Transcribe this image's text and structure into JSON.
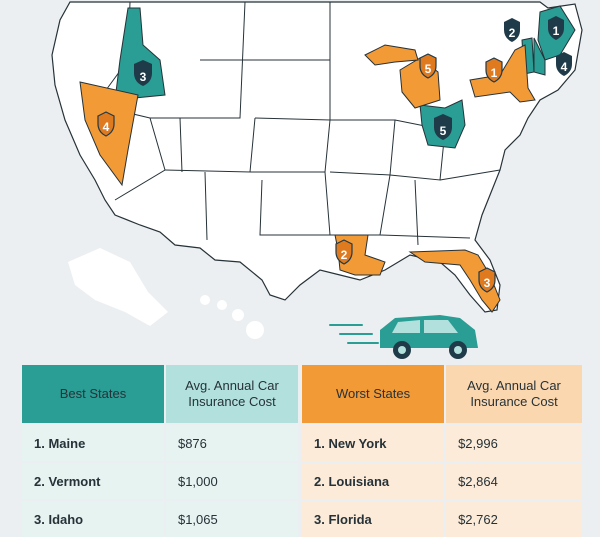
{
  "map": {
    "best_badges": [
      {
        "state": "Maine",
        "rank": "1"
      },
      {
        "state": "Vermont",
        "rank": "2"
      },
      {
        "state": "Idaho",
        "rank": "3"
      },
      {
        "state": "New Hampshire",
        "rank": "4"
      },
      {
        "state": "Ohio",
        "rank": "5"
      }
    ],
    "worst_badges": [
      {
        "state": "New York",
        "rank": "1"
      },
      {
        "state": "Louisiana",
        "rank": "2"
      },
      {
        "state": "Florida",
        "rank": "3"
      },
      {
        "state": "Nevada",
        "rank": "4"
      },
      {
        "state": "Michigan",
        "rank": "5"
      }
    ],
    "colors": {
      "best": "#2a9d94",
      "worst": "#f29a36",
      "badge_dark": "#1f3a48",
      "land": "#ffffff",
      "border": "#263238"
    }
  },
  "best_table": {
    "header_states": "Best States",
    "header_cost_line1": "Avg. Annual Car",
    "header_cost_line2": "Insurance Cost",
    "rows": [
      {
        "state": "1. Maine",
        "cost": "$876"
      },
      {
        "state": "2. Vermont",
        "cost": "$1,000"
      },
      {
        "state": "3. Idaho",
        "cost": "$1,065"
      }
    ]
  },
  "worst_table": {
    "header_states": "Worst States",
    "header_cost_line1": "Avg. Annual Car",
    "header_cost_line2": "Insurance Cost",
    "rows": [
      {
        "state": "1. New York",
        "cost": "$2,996"
      },
      {
        "state": "2. Louisiana",
        "cost": "$2,864"
      },
      {
        "state": "3. Florida",
        "cost": "$2,762"
      }
    ]
  },
  "car_icon": "car-icon"
}
